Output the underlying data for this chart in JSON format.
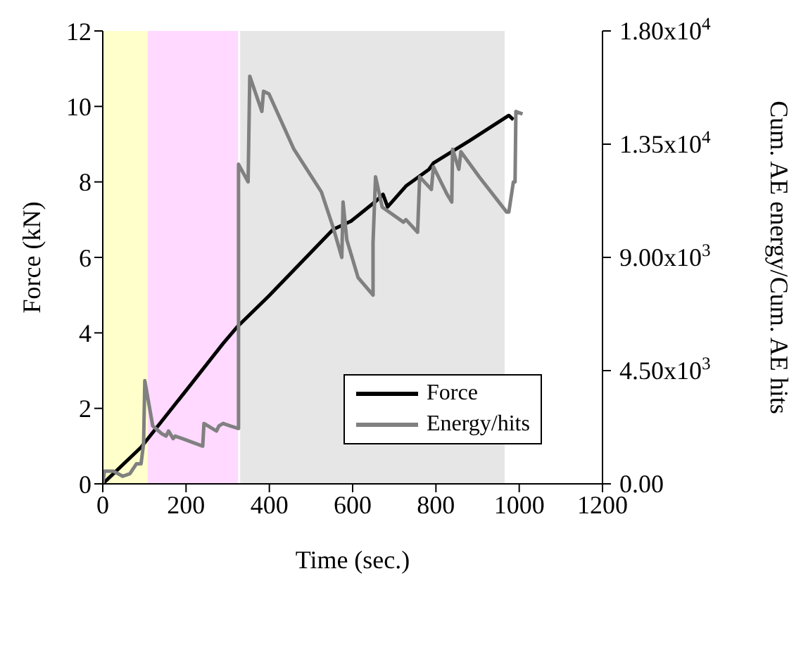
{
  "chart_data": {
    "type": "line",
    "xlabel": "Time (sec.)",
    "ylabel": "Force (kN)",
    "y2label": "Cum. AE energy/Cum. AE hits",
    "xlim": [
      0,
      1200
    ],
    "xticks": [
      0,
      200,
      400,
      600,
      800,
      1000,
      1200
    ],
    "ylim": [
      0,
      12
    ],
    "yticks": [
      0,
      2,
      4,
      6,
      8,
      10,
      12
    ],
    "y2lim": [
      0,
      18000
    ],
    "y2ticks": [
      {
        "value": 0,
        "label": "0.00"
      },
      {
        "value": 4500,
        "label": "4.50x10$^{3}$"
      },
      {
        "value": 9000,
        "label": "9.00x10$^{3}$"
      },
      {
        "value": 13500,
        "label": "1.35x10$^{4}$"
      },
      {
        "value": 18000,
        "label": "1.80x10$^{4}$"
      }
    ],
    "bands": [
      {
        "axis": "x",
        "from": 0,
        "to": 108,
        "color": "#ffffcc"
      },
      {
        "axis": "x",
        "from": 108,
        "to": 325,
        "color": "#ffd9ff"
      },
      {
        "axis": "x",
        "from": 330,
        "to": 965,
        "color": "#e6e6e6"
      }
    ],
    "series": [
      {
        "name": "Force",
        "color": "#000000",
        "x": [
          0,
          92,
          202,
          289,
          322,
          399,
          553,
          596,
          657,
          673,
          684,
          728,
          783,
          794,
          882,
          975,
          986
        ],
        "values": [
          0,
          0.97,
          2.5,
          3.72,
          4.15,
          4.98,
          6.74,
          6.96,
          7.5,
          7.67,
          7.34,
          7.89,
          8.33,
          8.5,
          9.1,
          9.76,
          9.65
        ]
      },
      {
        "name": "Energy/hits",
        "color": "#808080",
        "axis": "y2",
        "x": [
          0,
          4,
          26,
          48,
          65,
          81,
          92,
          98,
          101,
          120,
          141,
          152,
          158,
          169,
          174,
          191,
          240,
          243,
          273,
          279,
          289,
          306,
          326,
          326,
          349,
          353,
          382,
          386,
          399,
          459,
          525,
          553,
          574,
          577,
          586,
          613,
          649,
          649,
          655,
          671,
          722,
          728,
          756,
          761,
          789,
          794,
          827,
          838,
          840,
          855,
          860,
          904,
          970,
          975,
          986,
          990,
          992,
          1008
        ],
        "values": [
          0,
          500,
          500,
          300,
          400,
          800,
          800,
          1600,
          4100,
          2300,
          2000,
          1900,
          2100,
          1800,
          1900,
          1800,
          1500,
          2400,
          2100,
          2300,
          2400,
          2300,
          2200,
          12700,
          12000,
          16200,
          14800,
          15600,
          15500,
          13300,
          11600,
          10200,
          9000,
          11200,
          9700,
          8200,
          7500,
          9600,
          12200,
          11000,
          10400,
          10500,
          10000,
          12200,
          11700,
          12600,
          11500,
          11200,
          13300,
          12500,
          13200,
          12200,
          10800,
          10800,
          12000,
          12000,
          14800,
          14700
        ]
      }
    ],
    "legend": "bottom right",
    "grid": false,
    "marker": "none",
    "line_style": "solid"
  }
}
